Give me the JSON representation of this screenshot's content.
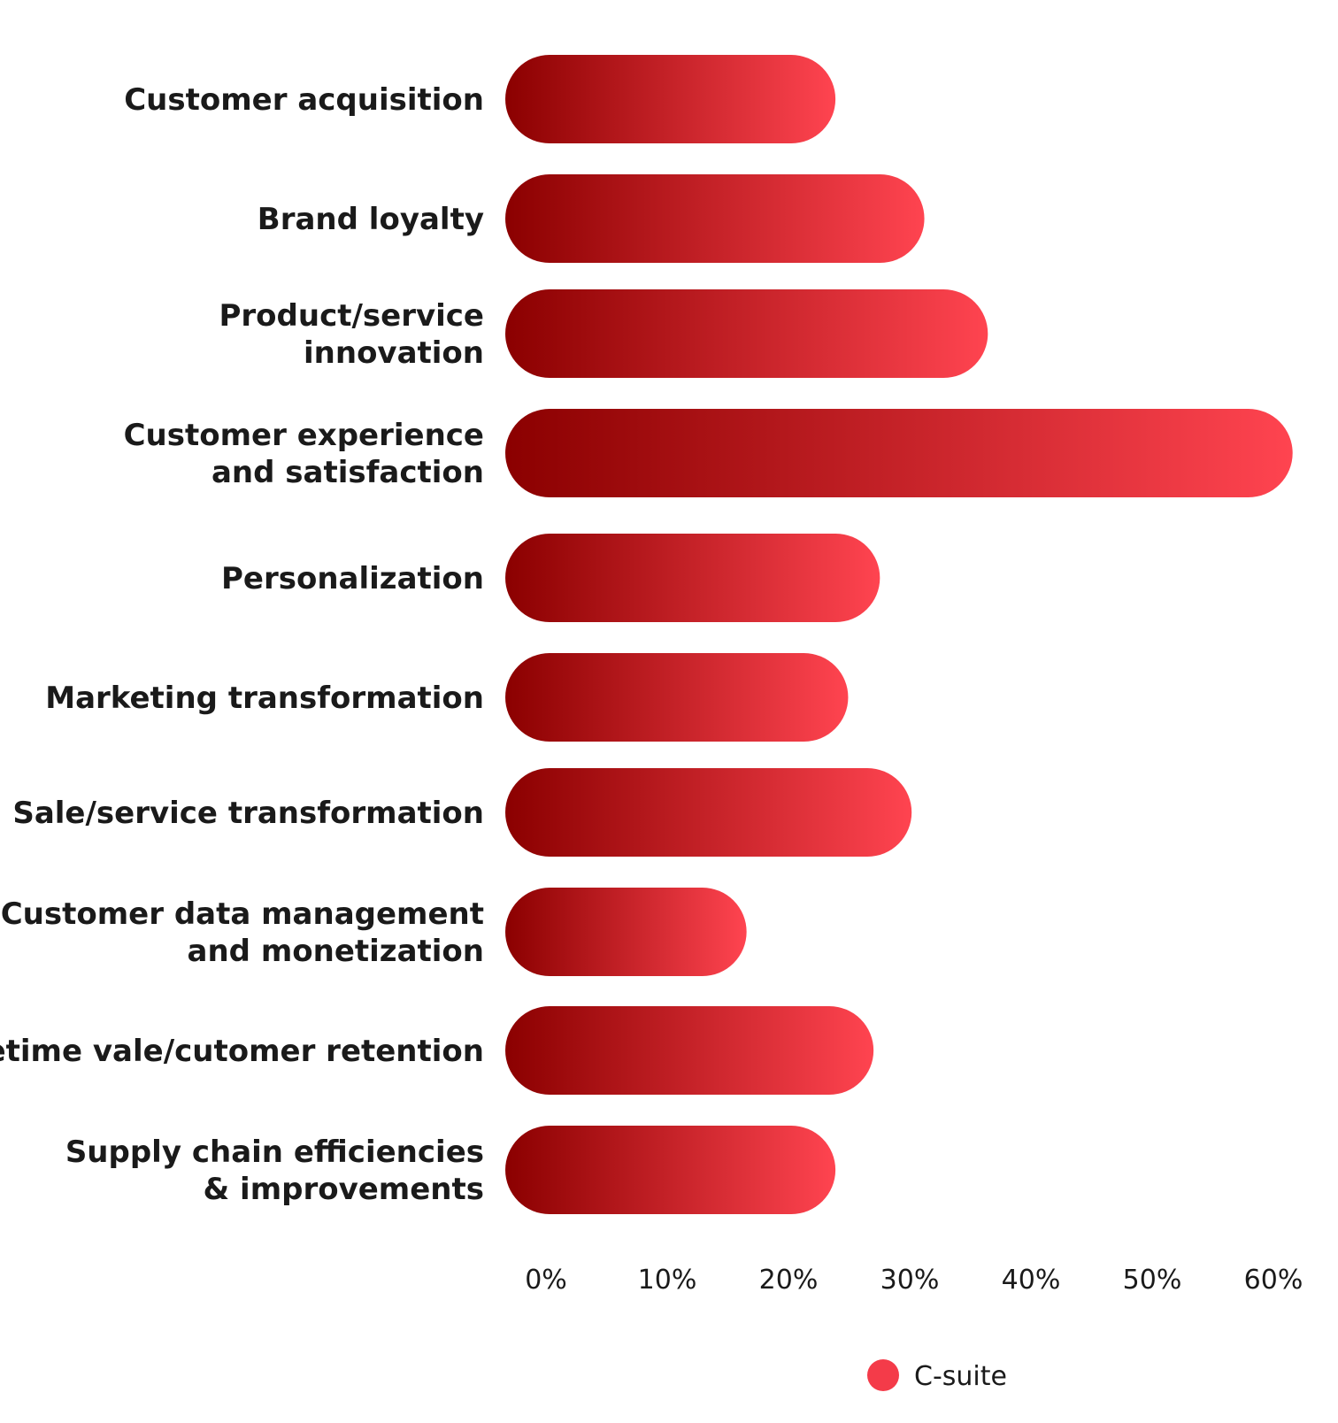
{
  "chart_data": {
    "type": "bar",
    "orientation": "horizontal",
    "categories": [
      [
        "Customer acquisition"
      ],
      [
        "Brand loyalty"
      ],
      [
        "Product/service",
        "innovation"
      ],
      [
        "Customer experience",
        "and satisfaction"
      ],
      [
        "Personalization"
      ],
      [
        "Marketing transformation"
      ],
      [
        "Sale/service transformation"
      ],
      [
        "Customer data management",
        "and monetization"
      ],
      [
        "Lifetime vale/cutomer retention"
      ],
      [
        "Supply chain efficiencies",
        "& improvements"
      ]
    ],
    "series": [
      {
        "name": "C-suite",
        "values": [
          26,
          33,
          38,
          62,
          29.5,
          27,
          32,
          19,
          29,
          26
        ]
      }
    ],
    "xlim": [
      0,
      60
    ],
    "xticks": [
      "0%",
      "10%",
      "20%",
      "30%",
      "40%",
      "50%",
      "60%"
    ],
    "legend": {
      "position": "bottom",
      "entries": [
        "C-suite"
      ]
    },
    "colors": {
      "bar_dark": "#8b0000",
      "bar_light": "#ff4450",
      "legend_dot": "#f43b49",
      "text": "#1a1a1a"
    },
    "grid": false
  }
}
